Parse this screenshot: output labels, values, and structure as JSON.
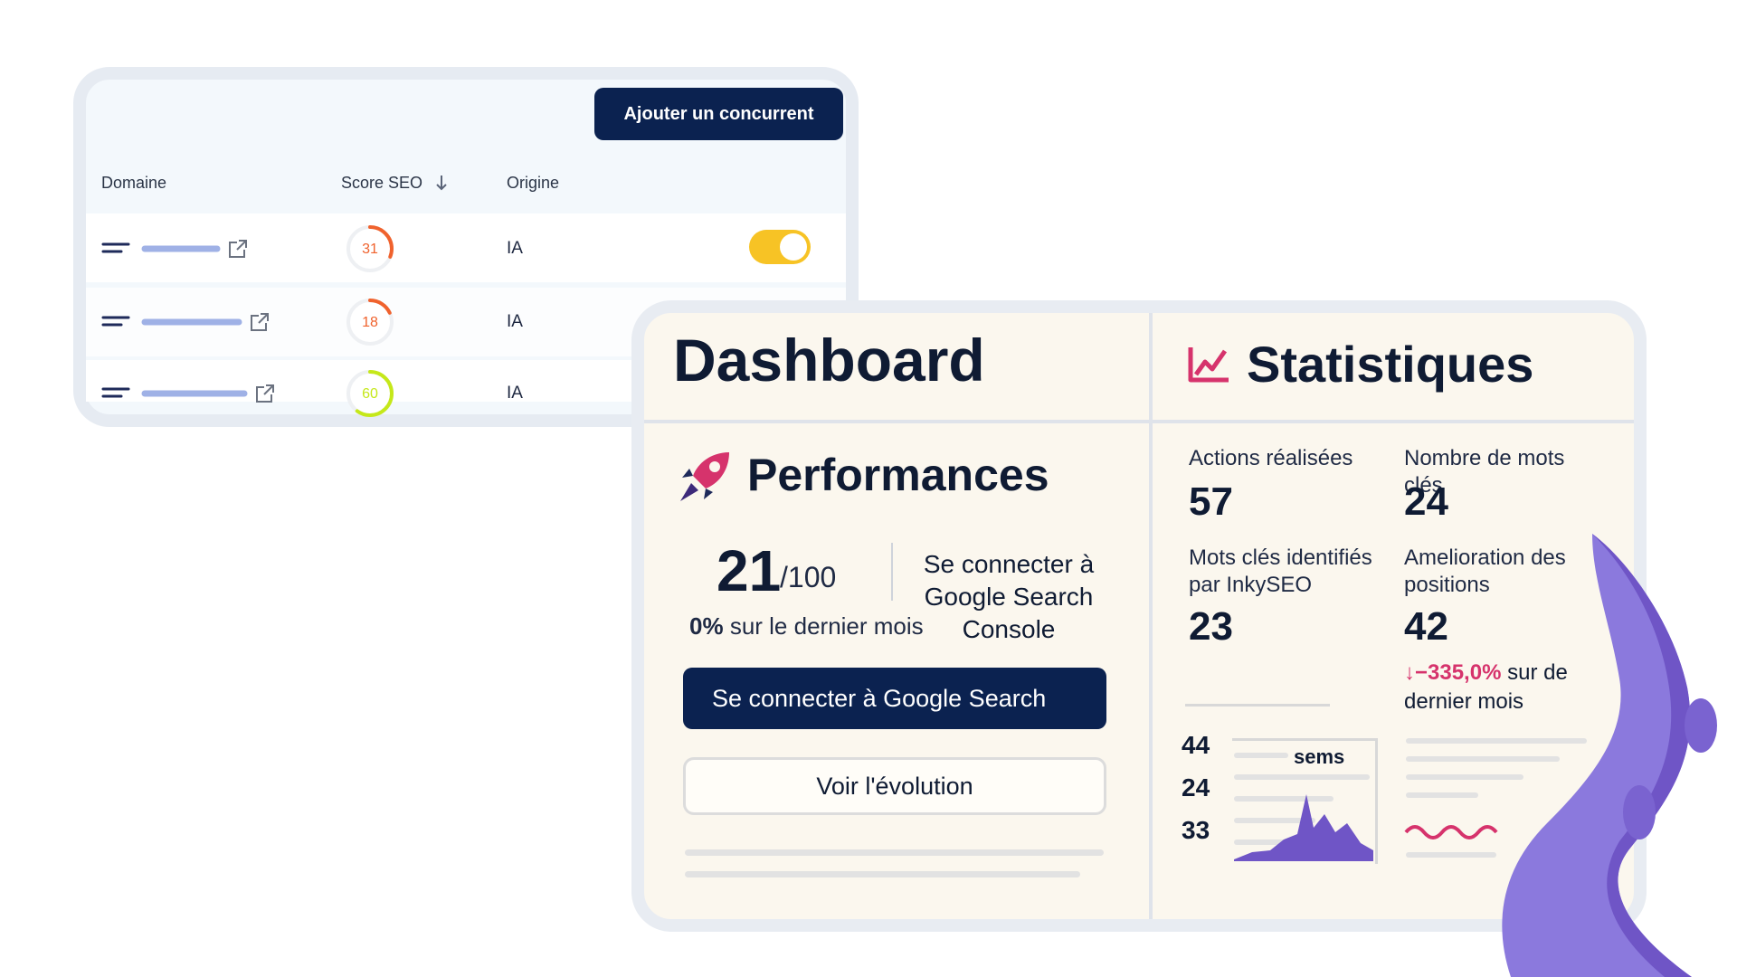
{
  "competitors": {
    "button": "Ajouter un concurrent",
    "headers": [
      "Domaine",
      "Score SEO",
      "Origine"
    ],
    "rows": [
      {
        "score": 31,
        "color": "#f0622d",
        "origin": "IA"
      },
      {
        "score": 18,
        "color": "#f0622d",
        "origin": "IA"
      },
      {
        "score": 60,
        "color": "#c5e81a",
        "origin": "IA"
      }
    ]
  },
  "dashboard": {
    "title": "Dashboard",
    "performances": {
      "title": "Performances",
      "score": 21,
      "score_max": "/100",
      "change": "0%",
      "change_text": "sur le dernier mois",
      "connect_text": "Se connecter à Google Search Console",
      "primary_button": "Se connecter à Google Search",
      "secondary_button": "Voir l'évolution"
    }
  },
  "statistics": {
    "title": "Statistiques",
    "metrics": [
      {
        "label": "Actions réalisées",
        "value": 57
      },
      {
        "label": "Nombre de mots clés",
        "value": 24
      },
      {
        "label": "Mots clés identifiés par InkySEO",
        "value": 23
      },
      {
        "label": "Amelioration des positions",
        "value": 42
      }
    ],
    "change": "↓−335,0%",
    "change_text": "sur de dernier mois",
    "mini_values": [
      44,
      24,
      33
    ],
    "mini_label": "sems"
  }
}
